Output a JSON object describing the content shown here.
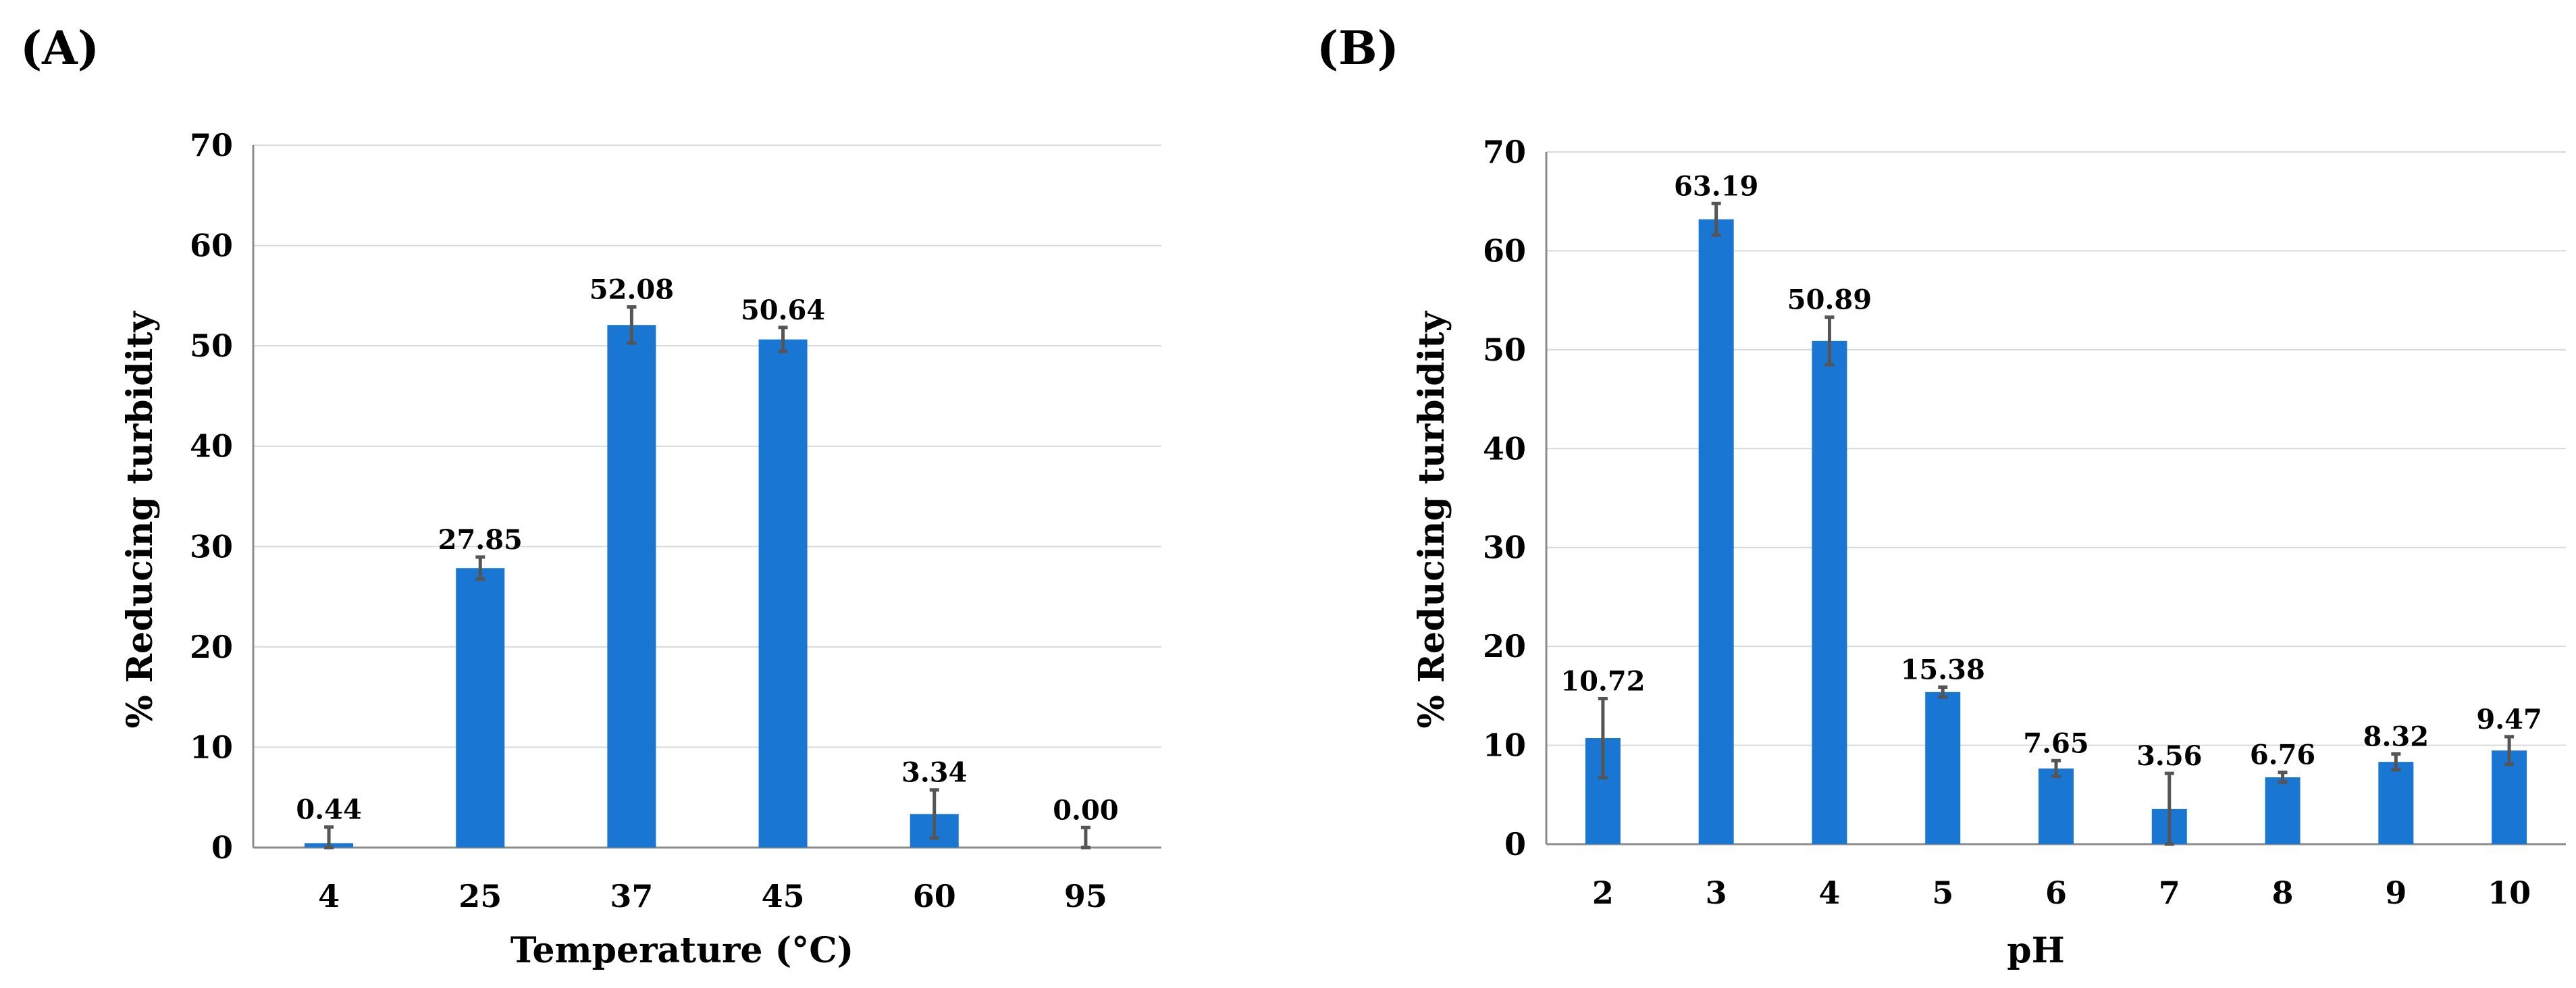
{
  "chart_data": [
    {
      "panel": "(A)",
      "type": "bar",
      "title": "",
      "xlabel": "Temperature (°C)",
      "ylabel": "% Reducing turbidity",
      "categories": [
        "4",
        "25",
        "37",
        "45",
        "60",
        "95"
      ],
      "values": [
        0.44,
        27.85,
        52.08,
        50.64,
        3.34,
        0.0
      ],
      "data_labels": [
        "0.44",
        "27.85",
        "52.08",
        "50.64",
        "3.34",
        "0.00"
      ],
      "errors": [
        1.6,
        1.1,
        1.8,
        1.2,
        2.4,
        2.0
      ],
      "ylim": [
        0,
        70
      ],
      "yticks": [
        0,
        10,
        20,
        30,
        40,
        50,
        60,
        70
      ],
      "grid": true,
      "colors": {
        "bar": "#1976d2",
        "error": "#555555"
      }
    },
    {
      "panel": "(B)",
      "type": "bar",
      "title": "",
      "xlabel": "pH",
      "ylabel": "% Reducing turbidity",
      "categories": [
        "2",
        "3",
        "4",
        "5",
        "6",
        "7",
        "8",
        "9",
        "10"
      ],
      "values": [
        10.72,
        63.19,
        50.89,
        15.38,
        7.65,
        3.56,
        6.76,
        8.32,
        9.47
      ],
      "data_labels": [
        "10.72",
        "63.19",
        "50.89",
        "15.38",
        "7.65",
        "3.56",
        "6.76",
        "8.32",
        "9.47"
      ],
      "errors": [
        4.0,
        1.6,
        2.4,
        0.5,
        0.8,
        3.6,
        0.5,
        0.8,
        1.4
      ],
      "ylim": [
        0,
        70
      ],
      "yticks": [
        0,
        10,
        20,
        30,
        40,
        50,
        60,
        70
      ],
      "grid": true,
      "colors": {
        "bar": "#1976d2",
        "error": "#555555"
      }
    }
  ]
}
